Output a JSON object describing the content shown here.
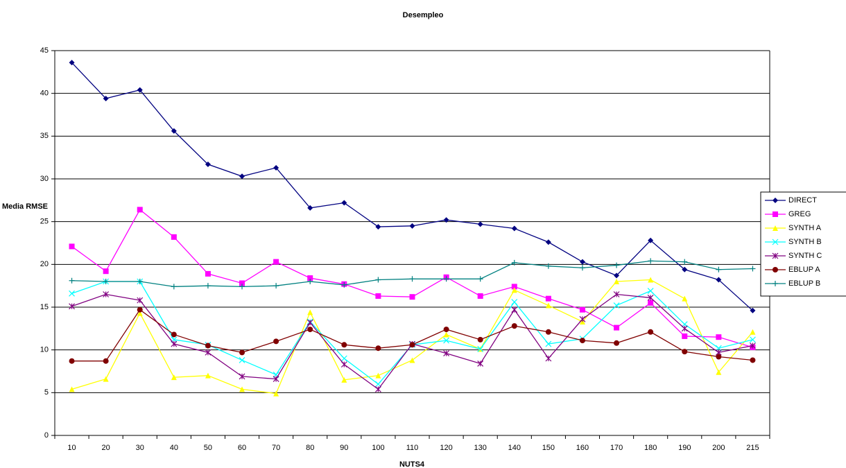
{
  "chart_data": {
    "type": "line",
    "title": "Desempleo",
    "x_label": "NUTS4",
    "y_label": "Media RMSE",
    "categories": [
      "10",
      "20",
      "30",
      "40",
      "50",
      "60",
      "70",
      "80",
      "90",
      "100",
      "110",
      "120",
      "130",
      "140",
      "150",
      "160",
      "170",
      "180",
      "190",
      "200",
      "215"
    ],
    "ylim": [
      0,
      45
    ],
    "yticks": [
      0,
      5,
      10,
      15,
      20,
      25,
      30,
      35,
      40,
      45
    ],
    "grid": true,
    "legend": "right",
    "series": [
      {
        "name": "DIRECT",
        "color": "#000080",
        "marker": "diamond",
        "values": [
          43.6,
          39.4,
          40.4,
          35.6,
          31.7,
          30.3,
          31.3,
          26.6,
          27.2,
          24.4,
          24.5,
          25.2,
          24.7,
          24.2,
          22.6,
          20.3,
          18.7,
          22.8,
          19.4,
          18.2,
          14.6
        ]
      },
      {
        "name": "GREG",
        "color": "#ff00ff",
        "marker": "square",
        "values": [
          22.1,
          19.2,
          26.4,
          23.2,
          18.9,
          17.8,
          20.3,
          18.4,
          17.7,
          16.3,
          16.2,
          18.5,
          16.3,
          17.4,
          16.0,
          14.7,
          12.6,
          15.5,
          11.6,
          11.5,
          10.3
        ]
      },
      {
        "name": "SYNTH A",
        "color": "#ffff00",
        "marker": "triangle",
        "values": [
          5.4,
          6.6,
          14.3,
          6.8,
          7.0,
          5.4,
          4.9,
          14.4,
          6.5,
          7.0,
          8.8,
          11.8,
          10.1,
          17.0,
          15.2,
          13.3,
          18.0,
          18.2,
          16.0,
          7.4,
          12.1
        ]
      },
      {
        "name": "SYNTH B",
        "color": "#00ffff",
        "marker": "x",
        "values": [
          16.6,
          18.0,
          18.0,
          11.2,
          10.6,
          8.8,
          7.1,
          13.3,
          9.0,
          6.0,
          10.6,
          11.1,
          10.1,
          15.6,
          10.7,
          11.3,
          15.2,
          16.9,
          13.0,
          10.2,
          11.2
        ]
      },
      {
        "name": "SYNTH C",
        "color": "#800080",
        "marker": "star",
        "values": [
          15.1,
          16.5,
          15.8,
          10.7,
          9.7,
          6.9,
          6.6,
          13.2,
          8.3,
          5.4,
          10.7,
          9.6,
          8.4,
          14.7,
          9.0,
          13.6,
          16.5,
          16.1,
          12.5,
          9.7,
          10.5
        ]
      },
      {
        "name": "EBLUP A",
        "color": "#800000",
        "marker": "circle",
        "values": [
          8.7,
          8.7,
          14.7,
          11.8,
          10.5,
          9.7,
          11.0,
          12.4,
          10.6,
          10.2,
          10.6,
          12.4,
          11.2,
          12.8,
          12.1,
          11.1,
          10.8,
          12.1,
          9.8,
          9.2,
          8.8
        ]
      },
      {
        "name": "EBLUP B",
        "color": "#008080",
        "marker": "plus",
        "values": [
          18.1,
          18.0,
          18.0,
          17.4,
          17.5,
          17.4,
          17.5,
          18.0,
          17.6,
          18.2,
          18.3,
          18.3,
          18.3,
          20.2,
          19.8,
          19.6,
          19.9,
          20.4,
          20.3,
          19.4,
          19.5
        ]
      }
    ]
  }
}
